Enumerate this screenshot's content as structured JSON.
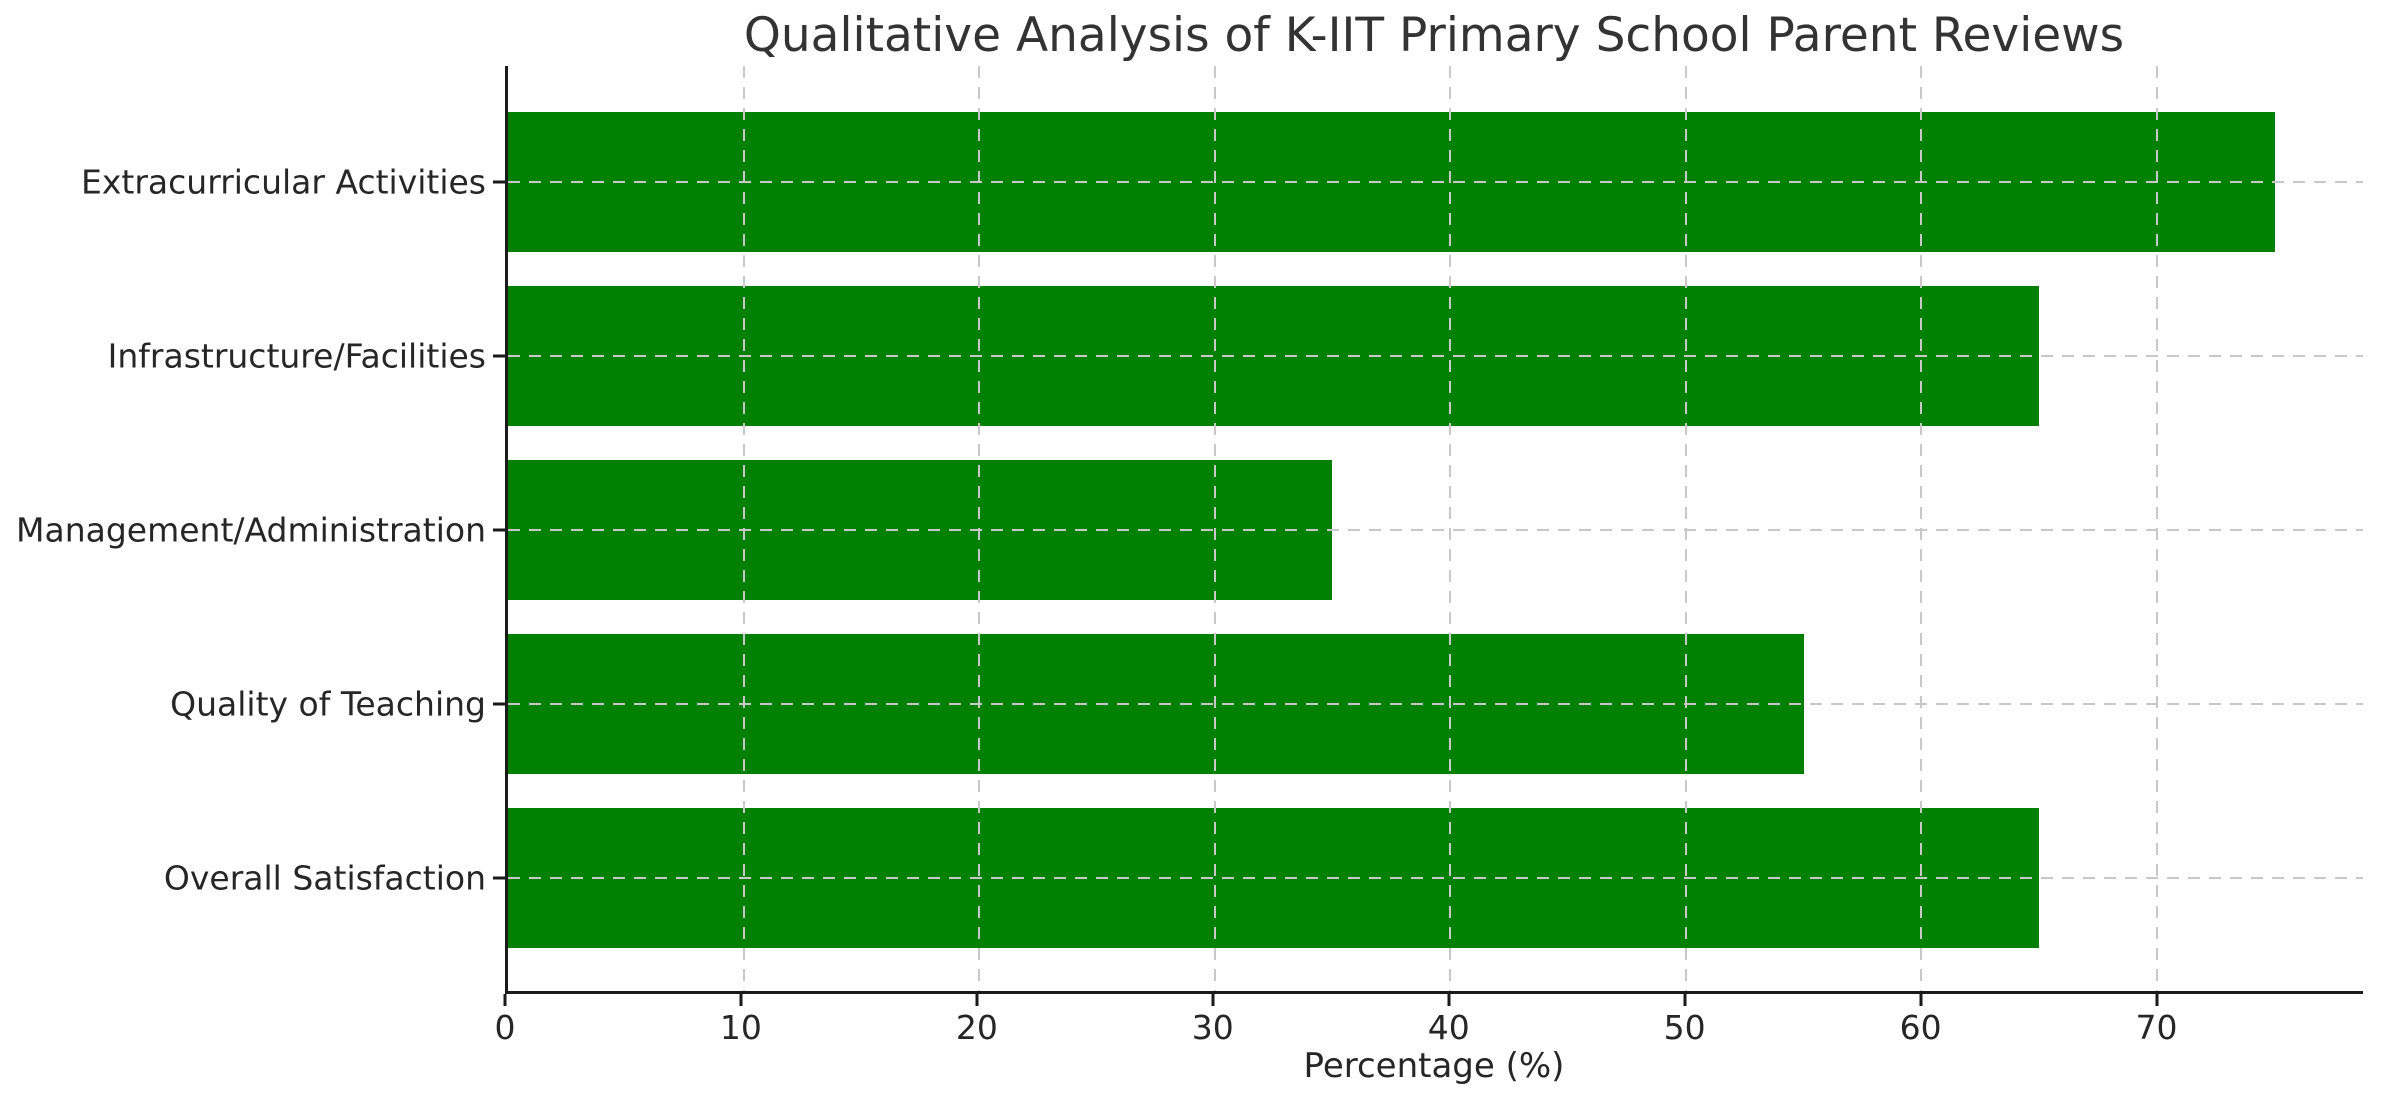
{
  "chart_data": {
    "type": "bar",
    "orientation": "horizontal",
    "title": "Qualitative Analysis of K-IIT Primary School Parent Reviews",
    "xlabel": "Percentage (%)",
    "ylabel": "",
    "categories": [
      "Extracurricular Activities",
      "Infrastructure/Facilities",
      "Management/Administration",
      "Quality of Teaching",
      "Overall Satisfaction"
    ],
    "values": [
      75,
      65,
      35,
      55,
      65
    ],
    "x_ticks": [
      0,
      10,
      20,
      30,
      40,
      50,
      60,
      70
    ],
    "xlim": [
      0,
      78.75
    ],
    "bar_color": "#008000",
    "grid": true,
    "grid_style": "dashed",
    "grid_color": "#c8c8c8",
    "grid_above_bars": true,
    "legend": false,
    "spines": [
      "left",
      "bottom"
    ],
    "text_color": "#262626",
    "title_color": "#333333"
  }
}
